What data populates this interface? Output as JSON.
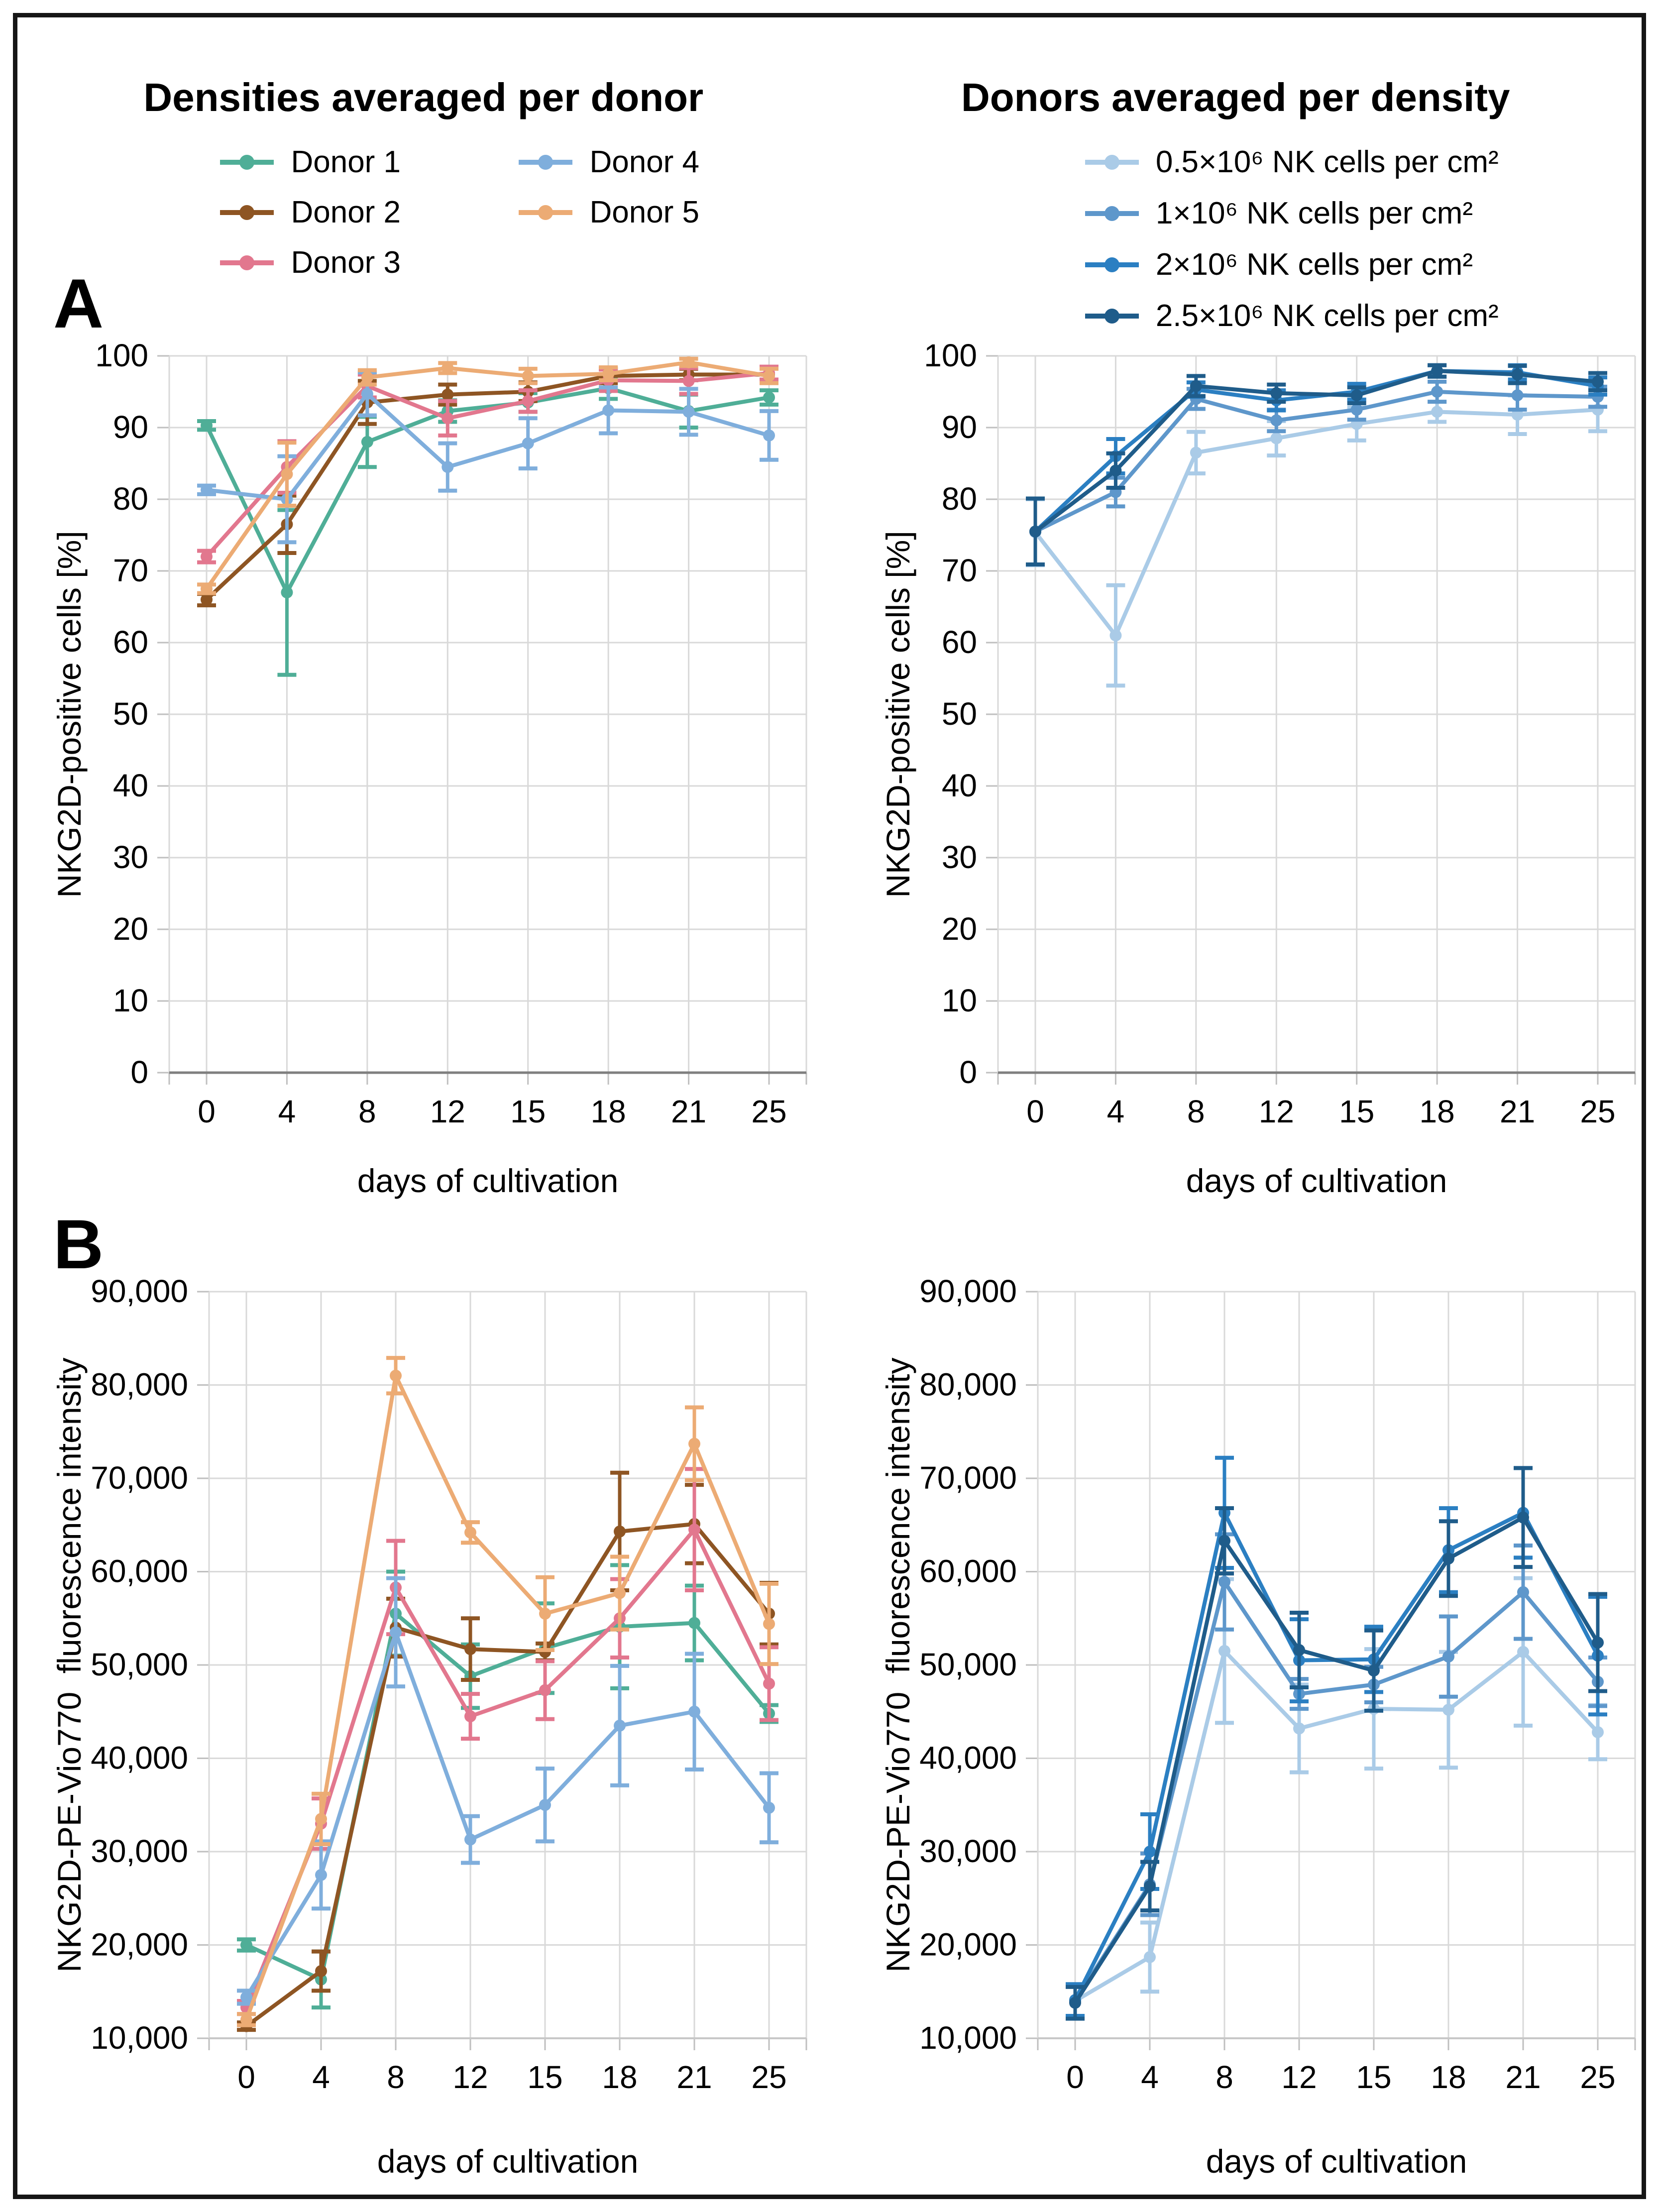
{
  "panels": {
    "a_label": "A",
    "b_label": "B"
  },
  "columns": [
    {
      "title": "Densities averaged per donor",
      "legend": [
        {
          "label": "Donor 1",
          "color": "#4FAE97"
        },
        {
          "label": "Donor 4",
          "color": "#7FAEDC"
        },
        {
          "label": "Donor 2",
          "color": "#8E5523"
        },
        {
          "label": "Donor 5",
          "color": "#ECAB74"
        },
        {
          "label": "Donor 3",
          "color": "#E2778E"
        }
      ]
    },
    {
      "title": "Donors averaged per density",
      "legend": [
        {
          "label": "0.5×10⁶ NK cells per cm²",
          "color": "#AACBE7"
        },
        {
          "label": "1×10⁶ NK cells per cm²",
          "color": "#5E97CB"
        },
        {
          "label": "2×10⁶ NK cells per cm²",
          "color": "#2B7FC2"
        },
        {
          "label": "2.5×10⁶ NK cells per cm²",
          "color": "#1F5C8A"
        }
      ]
    }
  ],
  "chart_data": [
    {
      "id": "chart-a-left",
      "type": "line",
      "panel": "A",
      "title": "Densities averaged per donor",
      "x": [
        0,
        4,
        8,
        12,
        15,
        18,
        21,
        25
      ],
      "xlabel": "days of cultivation",
      "ylabel": "NKG2D-positive cells [%]",
      "ylim": [
        0,
        100
      ],
      "ystep": 10,
      "yformat": "plain",
      "grid": true,
      "legend_position": "top",
      "series": [
        {
          "name": "Donor 1",
          "color": "#4FAE97",
          "values": [
            90.3,
            67,
            88,
            92.3,
            93.5,
            95.5,
            92.3,
            94.2
          ],
          "errors": [
            0.6,
            11.5,
            3.5,
            1.5,
            1.3,
            1.5,
            2.3,
            1.0
          ]
        },
        {
          "name": "Donor 2",
          "color": "#8E5523",
          "values": [
            66,
            76.5,
            93.5,
            94.6,
            95,
            97.2,
            97.4,
            97.4
          ],
          "errors": [
            0.8,
            4,
            3,
            1.4,
            1.3,
            1.0,
            0.8,
            1.0
          ]
        },
        {
          "name": "Donor 3",
          "color": "#E2778E",
          "values": [
            72,
            84.5,
            95.8,
            91.3,
            93.7,
            96.6,
            96.5,
            97.6
          ],
          "errors": [
            0.8,
            3.6,
            1.6,
            2.4,
            1.5,
            1.5,
            1.8,
            0.9
          ]
        },
        {
          "name": "Donor 4",
          "color": "#7FAEDC",
          "values": [
            81.3,
            80,
            94.7,
            84.5,
            87.8,
            92.4,
            92.2,
            88.9
          ],
          "errors": [
            0.6,
            6,
            3,
            3.3,
            3.5,
            3.2,
            3.2,
            3.4
          ]
        },
        {
          "name": "Donor 5",
          "color": "#ECAB74",
          "values": [
            67.5,
            83.5,
            97,
            98.3,
            97.2,
            97.5,
            99.1,
            97.2
          ],
          "errors": [
            0.6,
            4.4,
            1.0,
            0.7,
            1.0,
            0.9,
            0.5,
            1.0
          ]
        }
      ]
    },
    {
      "id": "chart-a-right",
      "type": "line",
      "panel": "A",
      "title": "Donors averaged per density",
      "x": [
        0,
        4,
        8,
        12,
        15,
        18,
        21,
        25
      ],
      "xlabel": "days of cultivation",
      "ylabel": "NKG2D-positive cells [%]",
      "ylim": [
        0,
        100
      ],
      "ystep": 10,
      "yformat": "plain",
      "grid": true,
      "legend_position": "top",
      "series": [
        {
          "name": "0.5×10⁶ NK cells per cm²",
          "color": "#AACBE7",
          "values": [
            75.4,
            61,
            86.5,
            88.5,
            90.5,
            92.2,
            91.8,
            92.5
          ],
          "errors": [
            4.6,
            7,
            2.9,
            2.4,
            2.3,
            1.4,
            2.7,
            3.0
          ]
        },
        {
          "name": "1×10⁶ NK cells per cm²",
          "color": "#5E97CB",
          "values": [
            75.5,
            81,
            94,
            91,
            92.5,
            95,
            94.5,
            94.3
          ],
          "errors": [
            4.6,
            2,
            1.4,
            1.5,
            1.4,
            1.4,
            2.0,
            1.4
          ]
        },
        {
          "name": "2×10⁶ NK cells per cm²",
          "color": "#2B7FC2",
          "values": [
            75.5,
            86,
            95.3,
            93.8,
            95,
            97.9,
            97.7,
            95.8
          ],
          "errors": [
            4.6,
            2.4,
            1.0,
            1.4,
            1.1,
            0.8,
            1.0,
            1.2
          ]
        },
        {
          "name": "2.5×10⁶ NK cells per cm²",
          "color": "#1F5C8A",
          "values": [
            75.5,
            84,
            95.8,
            94.8,
            94.5,
            97.9,
            97.4,
            96.4
          ],
          "errors": [
            4.6,
            2.4,
            1.4,
            1.2,
            1.1,
            0.8,
            1.2,
            1.2
          ]
        }
      ]
    },
    {
      "id": "chart-b-left",
      "type": "line",
      "panel": "B",
      "title": "Densities averaged per donor",
      "x": [
        0,
        4,
        8,
        12,
        15,
        18,
        21,
        25
      ],
      "xlabel": "days of cultivation",
      "ylabel": "NKG2D-PE-Vio770  fluorescence intensity",
      "ylim": [
        10000,
        90000
      ],
      "ystep": 10000,
      "yformat": "comma",
      "grid": true,
      "legend_position": "top",
      "series": [
        {
          "name": "Donor 1",
          "color": "#4FAE97",
          "values": [
            20000,
            16300,
            55500,
            48800,
            51800,
            54100,
            54500,
            44800
          ],
          "errors": [
            600,
            3000,
            4500,
            3400,
            4800,
            6600,
            4000,
            900
          ]
        },
        {
          "name": "Donor 2",
          "color": "#8E5523",
          "values": [
            11300,
            17200,
            54000,
            51700,
            51400,
            64300,
            65100,
            55500
          ],
          "errors": [
            400,
            2100,
            3100,
            3300,
            900,
            6300,
            4200,
            3300
          ]
        },
        {
          "name": "Donor 3",
          "color": "#E2778E",
          "values": [
            13300,
            33000,
            58300,
            44500,
            47300,
            55000,
            64500,
            48000
          ],
          "errors": [
            700,
            2700,
            5000,
            2400,
            3100,
            4200,
            6500,
            3900
          ]
        },
        {
          "name": "Donor 4",
          "color": "#7FAEDC",
          "values": [
            14400,
            27500,
            53500,
            31300,
            35000,
            43500,
            45000,
            34700
          ],
          "errors": [
            700,
            3600,
            5800,
            2500,
            3900,
            6400,
            6200,
            3700
          ]
        },
        {
          "name": "Donor 5",
          "color": "#ECAB74",
          "values": [
            12000,
            33500,
            81000,
            64200,
            55500,
            57700,
            73700,
            54400
          ],
          "errors": [
            600,
            2700,
            1900,
            1100,
            3900,
            3900,
            3900,
            4300
          ]
        }
      ]
    },
    {
      "id": "chart-b-right",
      "type": "line",
      "panel": "B",
      "title": "Donors averaged per density",
      "x": [
        0,
        4,
        8,
        12,
        15,
        18,
        21,
        25
      ],
      "xlabel": "days of cultivation",
      "ylabel": "NKG2D-PE-Vio770  fluorescence intensity",
      "ylim": [
        10000,
        90000
      ],
      "ystep": 10000,
      "yformat": "comma",
      "grid": true,
      "legend_position": "top",
      "series": [
        {
          "name": "0.5×10⁶ NK cells per cm²",
          "color": "#AACBE7",
          "values": [
            14000,
            18700,
            51500,
            43200,
            45300,
            45200,
            51400,
            42800
          ],
          "errors": [
            1700,
            3700,
            7700,
            4700,
            6400,
            6200,
            7900,
            2900
          ]
        },
        {
          "name": "1×10⁶ NK cells per cm²",
          "color": "#5E97CB",
          "values": [
            14000,
            26500,
            58900,
            46900,
            47900,
            50900,
            57800,
            48200
          ],
          "errors": [
            1700,
            3300,
            5100,
            1600,
            1900,
            4300,
            5000,
            2600
          ]
        },
        {
          "name": "2×10⁶ NK cells per cm²",
          "color": "#2B7FC2",
          "values": [
            14100,
            30000,
            66300,
            50500,
            50600,
            62300,
            66300,
            51000
          ],
          "errors": [
            1700,
            4000,
            5900,
            4400,
            3500,
            4500,
            4800,
            6300
          ]
        },
        {
          "name": "2.5×10⁶ NK cells per cm²",
          "color": "#1F5C8A",
          "values": [
            13800,
            26300,
            63300,
            51600,
            49400,
            61400,
            65800,
            52400
          ],
          "errors": [
            1700,
            2600,
            3500,
            4000,
            4300,
            4000,
            5300,
            5200
          ]
        }
      ]
    }
  ]
}
